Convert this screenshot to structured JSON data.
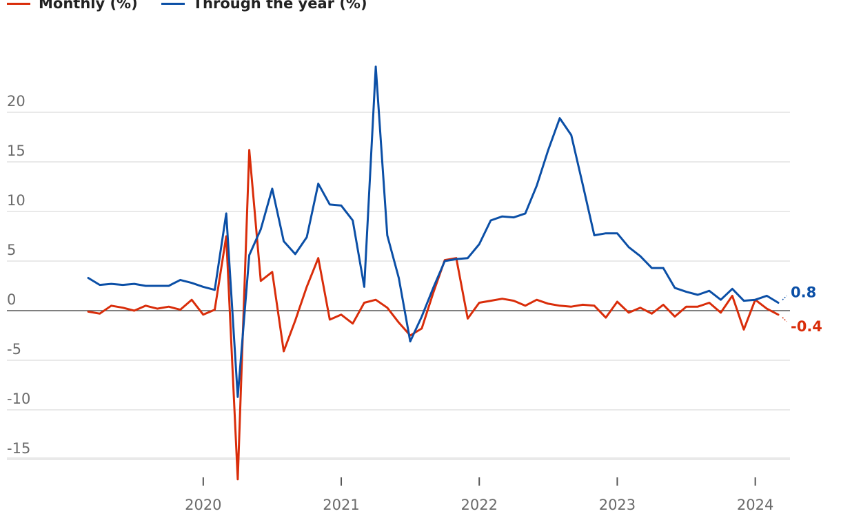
{
  "legend": [
    {
      "label": "Monthly (%)",
      "color": "#d92d0a"
    },
    {
      "label": "Through the year (%)",
      "color": "#0b4fa6"
    }
  ],
  "chart_data": {
    "type": "line",
    "title": "",
    "xlabel": "",
    "ylabel": "",
    "x_start": "2019-03",
    "x_end": "2024-03",
    "x_ticks": [
      "2020",
      "2021",
      "2022",
      "2023",
      "2024"
    ],
    "y_ticks": [
      20,
      15,
      10,
      5,
      0,
      -5,
      -10,
      -15
    ],
    "y_tick_labels": [
      "20",
      "15",
      "10",
      "5",
      "0",
      "-5",
      "-10",
      "-15"
    ],
    "ylim": [
      -17,
      24
    ],
    "grid": true,
    "legend_position": "top-left",
    "series": [
      {
        "name": "Monthly (%)",
        "color": "#d92d0a",
        "end_label": "-0.4",
        "values": [
          -0.1,
          -0.3,
          0.5,
          0.3,
          0.0,
          0.5,
          0.2,
          0.4,
          0.1,
          1.1,
          -0.4,
          0.1,
          7.5,
          -17.0,
          16.2,
          3.0,
          3.9,
          -4.1,
          -1.0,
          2.4,
          5.3,
          -0.9,
          -0.4,
          -1.3,
          0.8,
          1.1,
          0.3,
          -1.2,
          -2.5,
          -1.8,
          1.8,
          5.1,
          5.3,
          -0.8,
          0.8,
          1.0,
          1.2,
          1.0,
          0.5,
          1.1,
          0.7,
          0.5,
          0.4,
          0.6,
          0.5,
          -0.7,
          0.9,
          -0.2,
          0.3,
          -0.3,
          0.6,
          -0.6,
          0.4,
          0.4,
          0.8,
          -0.2,
          1.5,
          -1.9,
          1.1,
          0.2,
          -0.4
        ]
      },
      {
        "name": "Through the year (%)",
        "color": "#0b4fa6",
        "end_label": "0.8",
        "values": [
          3.3,
          2.6,
          2.7,
          2.6,
          2.7,
          2.5,
          2.5,
          2.5,
          3.1,
          2.8,
          2.4,
          2.1,
          9.8,
          -8.7,
          5.6,
          8.2,
          12.3,
          7.0,
          5.7,
          7.4,
          12.8,
          10.7,
          10.6,
          9.1,
          2.4,
          24.6,
          7.6,
          3.3,
          -3.1,
          -0.6,
          2.3,
          5.0,
          5.2,
          5.3,
          6.7,
          9.1,
          9.5,
          9.4,
          9.8,
          12.6,
          16.2,
          19.4,
          17.7,
          12.7,
          7.6,
          7.8,
          7.8,
          6.4,
          5.5,
          4.3,
          4.3,
          2.3,
          1.9,
          1.6,
          2.0,
          1.1,
          2.2,
          1.0,
          1.1,
          1.5,
          0.8
        ]
      }
    ]
  }
}
